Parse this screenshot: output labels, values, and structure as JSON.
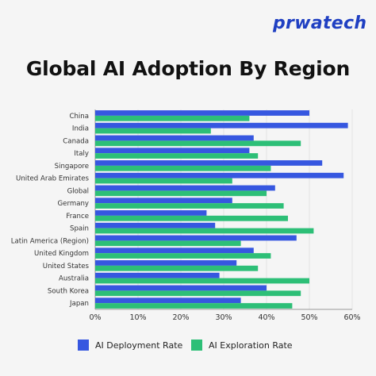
{
  "brand": {
    "logo_text": "prwatech"
  },
  "colors": {
    "deployment": "#3657e0",
    "exploration": "#2dbf77",
    "axis": "#999999",
    "grid": "#e3e3e3"
  },
  "chart_data": {
    "type": "bar",
    "orientation": "horizontal",
    "title": "Global AI Adoption By Region",
    "categories": [
      "China",
      "India",
      "Canada",
      "Italy",
      "Singapore",
      "United Arab Emirates",
      "Global",
      "Germany",
      "France",
      "Spain",
      "Latin America (Region)",
      "United Kingdom",
      "United States",
      "Australia",
      "South Korea",
      "Japan"
    ],
    "series": [
      {
        "name": "AI Deployment Rate",
        "values": [
          50,
          59,
          37,
          36,
          53,
          58,
          42,
          32,
          26,
          28,
          47,
          37,
          33,
          29,
          40,
          34
        ]
      },
      {
        "name": "AI Exploration Rate",
        "values": [
          36,
          27,
          48,
          38,
          41,
          32,
          40,
          44,
          45,
          51,
          34,
          41,
          38,
          50,
          48,
          46
        ]
      }
    ],
    "xlim": [
      0,
      60
    ],
    "x_ticks": [
      "0%",
      "10%",
      "20%",
      "30%",
      "40%",
      "50%",
      "60%"
    ],
    "legend_position": "bottom"
  }
}
